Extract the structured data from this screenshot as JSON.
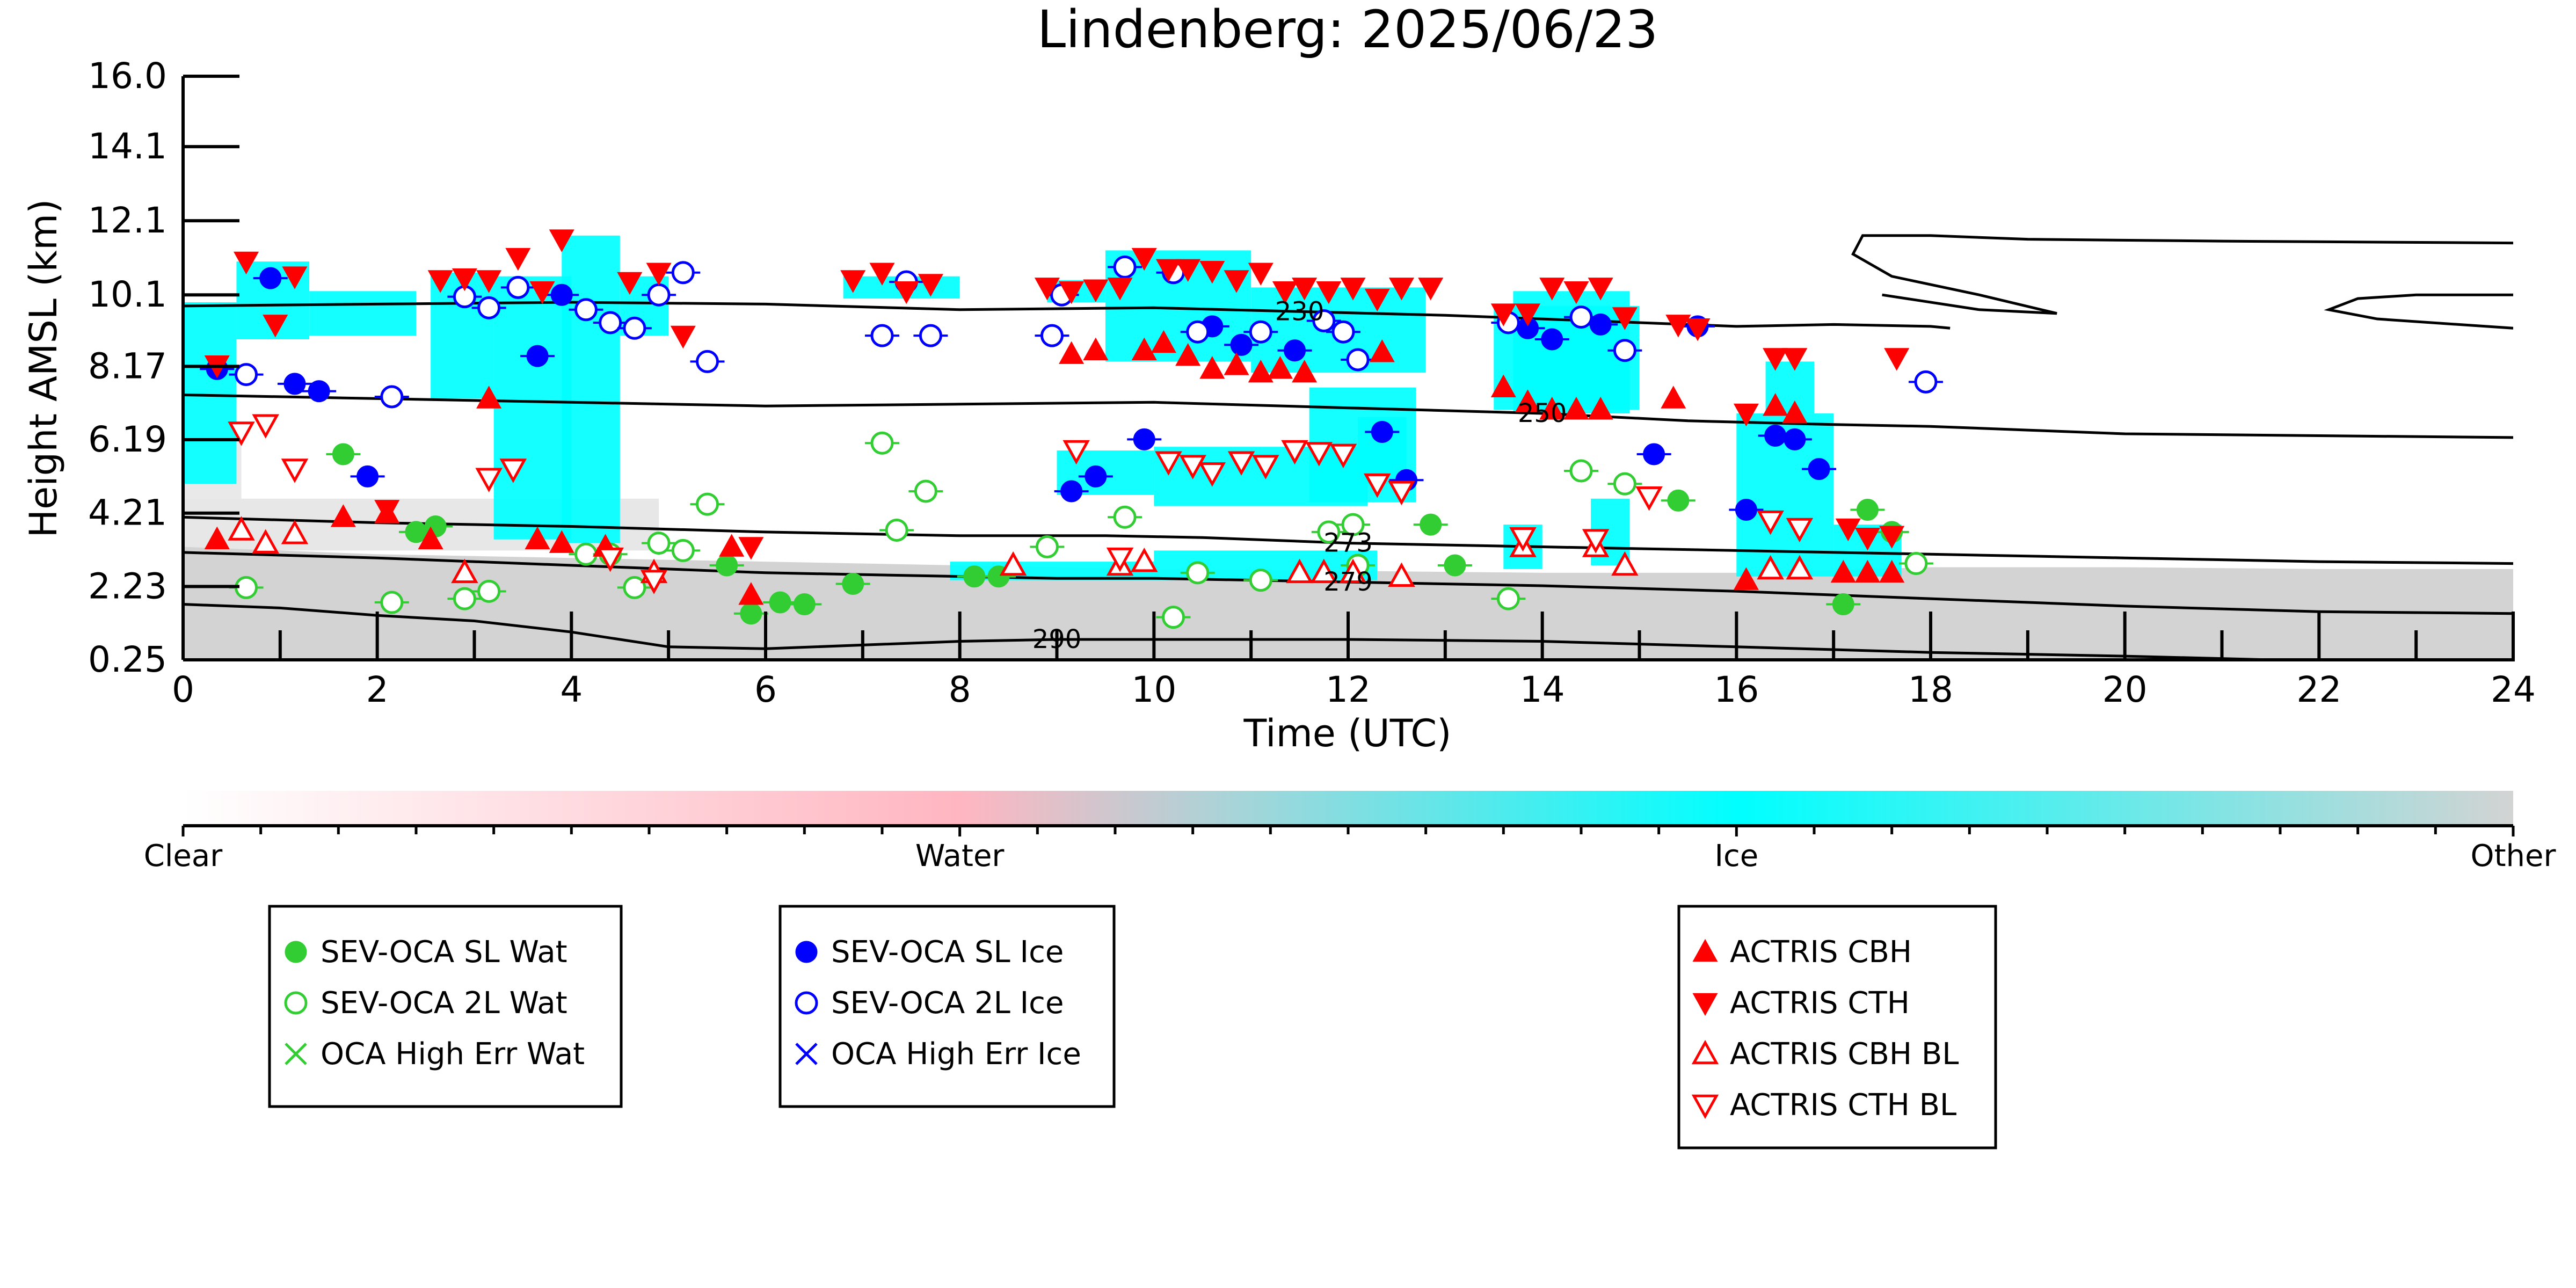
{
  "chart_data": {
    "type": "scatter",
    "title": "Lindenberg: 2025/06/23",
    "xlabel": "Time (UTC)",
    "ylabel": "Height AMSL (km)",
    "xlim": [
      0,
      24
    ],
    "ylim": [
      0.25,
      16.0
    ],
    "x_ticks": [
      "0",
      "2",
      "4",
      "6",
      "8",
      "10",
      "12",
      "14",
      "16",
      "18",
      "20",
      "22",
      "24"
    ],
    "y_ticks": [
      "0.25",
      "2.23",
      "4.21",
      "6.19",
      "8.17",
      "10.1",
      "12.1",
      "14.1",
      "16.0"
    ],
    "y_tick_values": [
      0.25,
      2.23,
      4.21,
      6.19,
      8.17,
      10.1,
      12.1,
      14.1,
      16.0
    ],
    "colors": {
      "clear": "#ffffff",
      "water": "#ffb6c1",
      "ice": "#00ffff",
      "other": "#d3d3d3",
      "sev_wat": "#32cd32",
      "sev_ice": "#0000ff",
      "actris": "#ff0000"
    },
    "colorbar_labels": [
      "Clear",
      "Water",
      "Ice",
      "Other"
    ],
    "legends": [
      [
        {
          "marker": "filled-circle",
          "color": "#32cd32",
          "label": "SEV-OCA SL Wat"
        },
        {
          "marker": "open-circle",
          "color": "#32cd32",
          "label": "SEV-OCA 2L Wat"
        },
        {
          "marker": "x",
          "color": "#32cd32",
          "label": "OCA High Err Wat"
        }
      ],
      [
        {
          "marker": "filled-circle",
          "color": "#0000ff",
          "label": "SEV-OCA SL Ice"
        },
        {
          "marker": "open-circle",
          "color": "#0000ff",
          "label": "SEV-OCA 2L Ice"
        },
        {
          "marker": "x",
          "color": "#0000ff",
          "label": "OCA High Err Ice"
        }
      ],
      [
        {
          "marker": "triangle-up",
          "color": "#ff0000",
          "label": "ACTRIS CBH"
        },
        {
          "marker": "triangle-down",
          "color": "#ff0000",
          "label": "ACTRIS CTH"
        },
        {
          "marker": "open-triangle-up",
          "color": "#ff0000",
          "label": "ACTRIS CBH BL"
        },
        {
          "marker": "open-triangle-down",
          "color": "#ff0000",
          "label": "ACTRIS CTH BL"
        }
      ]
    ],
    "contours": [
      {
        "label": "230",
        "points": [
          [
            0,
            9.8
          ],
          [
            2,
            9.85
          ],
          [
            4,
            9.9
          ],
          [
            6,
            9.85
          ],
          [
            8,
            9.7
          ],
          [
            10,
            9.75
          ],
          [
            11.5,
            9.65
          ],
          [
            13,
            9.55
          ],
          [
            14.5,
            9.4
          ],
          [
            16,
            9.25
          ],
          [
            17,
            9.3
          ],
          [
            18,
            9.25
          ],
          [
            18.2,
            9.2
          ]
        ]
      },
      {
        "label": "250",
        "points": [
          [
            0,
            7.4
          ],
          [
            2,
            7.3
          ],
          [
            4,
            7.2
          ],
          [
            6,
            7.1
          ],
          [
            8,
            7.15
          ],
          [
            10,
            7.2
          ],
          [
            12,
            7.05
          ],
          [
            14,
            6.9
          ],
          [
            15.5,
            6.7
          ],
          [
            17,
            6.6
          ],
          [
            18,
            6.55
          ],
          [
            19,
            6.45
          ],
          [
            20,
            6.35
          ],
          [
            22,
            6.3
          ],
          [
            24,
            6.25
          ]
        ]
      },
      {
        "label": "273",
        "points": [
          [
            0,
            4.1
          ],
          [
            2,
            3.95
          ],
          [
            4,
            3.85
          ],
          [
            6,
            3.7
          ],
          [
            8,
            3.6
          ],
          [
            9.5,
            3.6
          ],
          [
            10.5,
            3.55
          ],
          [
            12,
            3.4
          ],
          [
            14,
            3.3
          ],
          [
            16,
            3.2
          ],
          [
            18,
            3.1
          ],
          [
            20,
            3.0
          ],
          [
            22,
            2.9
          ],
          [
            24,
            2.85
          ]
        ]
      },
      {
        "label": "279",
        "points": [
          [
            0,
            3.15
          ],
          [
            2,
            3.0
          ],
          [
            4,
            2.8
          ],
          [
            6,
            2.6
          ],
          [
            8,
            2.5
          ],
          [
            9,
            2.45
          ],
          [
            10,
            2.45
          ],
          [
            12,
            2.35
          ],
          [
            14,
            2.25
          ],
          [
            16,
            2.1
          ],
          [
            18,
            1.9
          ],
          [
            20,
            1.7
          ],
          [
            22,
            1.55
          ],
          [
            24,
            1.5
          ]
        ]
      },
      {
        "label": "290",
        "points": [
          [
            0,
            1.75
          ],
          [
            1,
            1.65
          ],
          [
            2,
            1.45
          ],
          [
            3,
            1.3
          ],
          [
            4,
            1.0
          ],
          [
            5,
            0.6
          ],
          [
            6,
            0.55
          ],
          [
            8,
            0.75
          ],
          [
            9,
            0.8
          ],
          [
            10,
            0.8
          ],
          [
            12,
            0.8
          ],
          [
            14,
            0.75
          ],
          [
            16,
            0.6
          ],
          [
            18,
            0.45
          ],
          [
            20,
            0.35
          ],
          [
            21.5,
            0.25
          ]
        ]
      }
    ],
    "series": [
      {
        "name": "SEV-OCA SL Wat",
        "marker": "filled-circle",
        "color": "#32cd32",
        "x": [
          1.65,
          2.4,
          2.6,
          5.6,
          5.85,
          6.15,
          6.4,
          6.9,
          8.15,
          8.4,
          12.85,
          13.1,
          15.4,
          17.1,
          17.35,
          17.6
        ],
        "y": [
          5.8,
          3.7,
          3.85,
          2.8,
          1.5,
          1.8,
          1.75,
          2.3,
          2.5,
          2.5,
          3.9,
          2.8,
          4.55,
          1.75,
          4.3,
          3.7
        ]
      },
      {
        "name": "SEV-OCA 2L Wat",
        "marker": "open-circle",
        "color": "#32cd32",
        "x": [
          0.65,
          2.15,
          2.9,
          3.15,
          4.15,
          4.4,
          4.65,
          4.9,
          5.15,
          5.4,
          7.2,
          7.35,
          7.65,
          8.9,
          9.7,
          10.2,
          10.45,
          11.1,
          11.8,
          12.05,
          12.1,
          13.65,
          14.4,
          14.85,
          17.85
        ],
        "y": [
          2.2,
          1.8,
          1.9,
          2.1,
          3.1,
          3.1,
          2.2,
          3.4,
          3.2,
          4.45,
          6.1,
          3.75,
          4.8,
          3.3,
          4.1,
          1.4,
          2.6,
          2.4,
          3.7,
          3.9,
          2.8,
          1.9,
          5.35,
          5.0,
          2.85
        ]
      },
      {
        "name": "SEV-OCA SL Ice",
        "marker": "filled-circle",
        "color": "#0000ff",
        "x": [
          0.35,
          0.9,
          1.15,
          1.4,
          1.9,
          3.65,
          3.9,
          9.15,
          9.4,
          9.9,
          10.6,
          10.9,
          11.45,
          12.35,
          12.6,
          13.85,
          14.1,
          14.6,
          15.15,
          15.6,
          16.1,
          16.4,
          16.6,
          16.85
        ],
        "y": [
          8.1,
          10.55,
          7.7,
          7.5,
          5.2,
          8.45,
          10.1,
          4.8,
          5.2,
          6.2,
          9.25,
          8.75,
          8.6,
          6.4,
          5.1,
          9.2,
          8.9,
          9.3,
          5.8,
          9.25,
          4.3,
          6.3,
          6.2,
          5.4
        ]
      },
      {
        "name": "SEV-OCA 2L Ice",
        "marker": "open-circle",
        "color": "#0000ff",
        "x": [
          0.65,
          2.15,
          2.9,
          3.15,
          3.45,
          4.15,
          4.4,
          4.65,
          4.9,
          5.15,
          5.4,
          7.2,
          7.45,
          7.7,
          8.95,
          9.05,
          9.7,
          10.2,
          10.45,
          11.1,
          11.75,
          11.95,
          12.1,
          13.65,
          14.4,
          14.85,
          17.95
        ],
        "y": [
          7.95,
          7.35,
          10.05,
          9.75,
          10.3,
          9.7,
          9.35,
          9.2,
          10.1,
          10.7,
          8.3,
          9.0,
          10.45,
          9.0,
          9.0,
          10.1,
          10.85,
          10.7,
          9.1,
          9.1,
          9.4,
          9.1,
          8.35,
          9.35,
          9.5,
          8.6,
          7.75
        ]
      },
      {
        "name": "ACTRIS CBH",
        "marker": "triangle-up",
        "color": "#ff0000",
        "x": [
          0.35,
          1.65,
          2.1,
          2.55,
          3.15,
          3.65,
          3.9,
          4.35,
          5.65,
          5.85,
          9.15,
          9.4,
          9.9,
          10.1,
          10.35,
          10.6,
          10.85,
          11.1,
          11.3,
          11.55,
          12.35,
          13.6,
          13.85,
          14.1,
          14.35,
          14.6,
          15.35,
          16.1,
          16.4,
          16.6,
          17.1,
          17.35,
          17.6
        ],
        "y": [
          3.5,
          4.1,
          4.2,
          3.5,
          7.3,
          3.5,
          3.4,
          3.3,
          3.3,
          2.0,
          8.5,
          8.6,
          8.6,
          8.8,
          8.45,
          8.1,
          8.2,
          8.0,
          8.1,
          8.0,
          8.55,
          7.6,
          7.2,
          7.0,
          7.0,
          7.0,
          7.3,
          2.4,
          7.1,
          6.9,
          2.6,
          2.6,
          2.6
        ]
      },
      {
        "name": "ACTRIS CTH",
        "marker": "triangle-down",
        "color": "#ff0000",
        "x": [
          0.35,
          0.65,
          0.95,
          1.15,
          2.1,
          2.65,
          2.9,
          3.15,
          3.45,
          3.7,
          3.9,
          4.6,
          4.9,
          5.15,
          5.85,
          6.9,
          7.2,
          7.45,
          7.7,
          8.9,
          9.15,
          9.4,
          9.65,
          9.9,
          10.15,
          10.35,
          10.6,
          10.85,
          11.1,
          11.35,
          11.55,
          11.8,
          12.05,
          12.3,
          12.55,
          12.85,
          13.6,
          13.85,
          14.1,
          14.35,
          14.6,
          14.85,
          15.4,
          15.6,
          16.1,
          16.4,
          16.6,
          17.15,
          17.35,
          17.6,
          17.65
        ],
        "y": [
          8.2,
          11.0,
          9.3,
          10.6,
          4.3,
          10.5,
          10.55,
          10.5,
          11.1,
          10.2,
          11.6,
          10.45,
          10.7,
          9.0,
          3.3,
          10.5,
          10.7,
          10.2,
          10.4,
          10.3,
          10.2,
          10.25,
          10.3,
          11.1,
          10.8,
          10.8,
          10.75,
          10.5,
          10.7,
          10.2,
          10.3,
          10.2,
          10.3,
          10.0,
          10.3,
          10.3,
          9.6,
          9.6,
          10.3,
          10.2,
          10.3,
          9.5,
          9.3,
          9.2,
          6.9,
          8.4,
          8.4,
          3.8,
          3.55,
          3.6,
          8.4
        ]
      },
      {
        "name": "ACTRIS CBH BL",
        "marker": "open-triangle-up",
        "color": "#ff0000",
        "x": [
          0.6,
          0.85,
          1.15,
          2.9,
          4.85,
          8.55,
          9.65,
          9.9,
          11.5,
          11.75,
          12.05,
          12.55,
          13.8,
          14.55,
          14.85,
          16.35,
          16.65
        ],
        "y": [
          3.75,
          3.4,
          3.65,
          2.6,
          2.6,
          2.8,
          2.8,
          2.9,
          2.6,
          2.6,
          2.6,
          2.5,
          3.3,
          3.3,
          2.8,
          2.7,
          2.7
        ]
      },
      {
        "name": "ACTRIS CTH BL",
        "marker": "open-triangle-down",
        "color": "#ff0000",
        "x": [
          0.6,
          0.85,
          1.15,
          3.15,
          3.4,
          4.4,
          4.85,
          9.2,
          9.65,
          10.15,
          10.4,
          10.6,
          10.9,
          11.15,
          11.45,
          11.7,
          11.95,
          12.3,
          12.55,
          13.8,
          14.55,
          15.1,
          16.35,
          16.65
        ],
        "y": [
          6.4,
          6.6,
          5.4,
          5.15,
          5.4,
          3.0,
          2.4,
          5.9,
          3.0,
          5.6,
          5.5,
          5.3,
          5.6,
          5.5,
          5.9,
          5.85,
          5.8,
          5.0,
          4.8,
          3.55,
          3.5,
          4.65,
          4.0,
          3.8
        ]
      }
    ]
  }
}
